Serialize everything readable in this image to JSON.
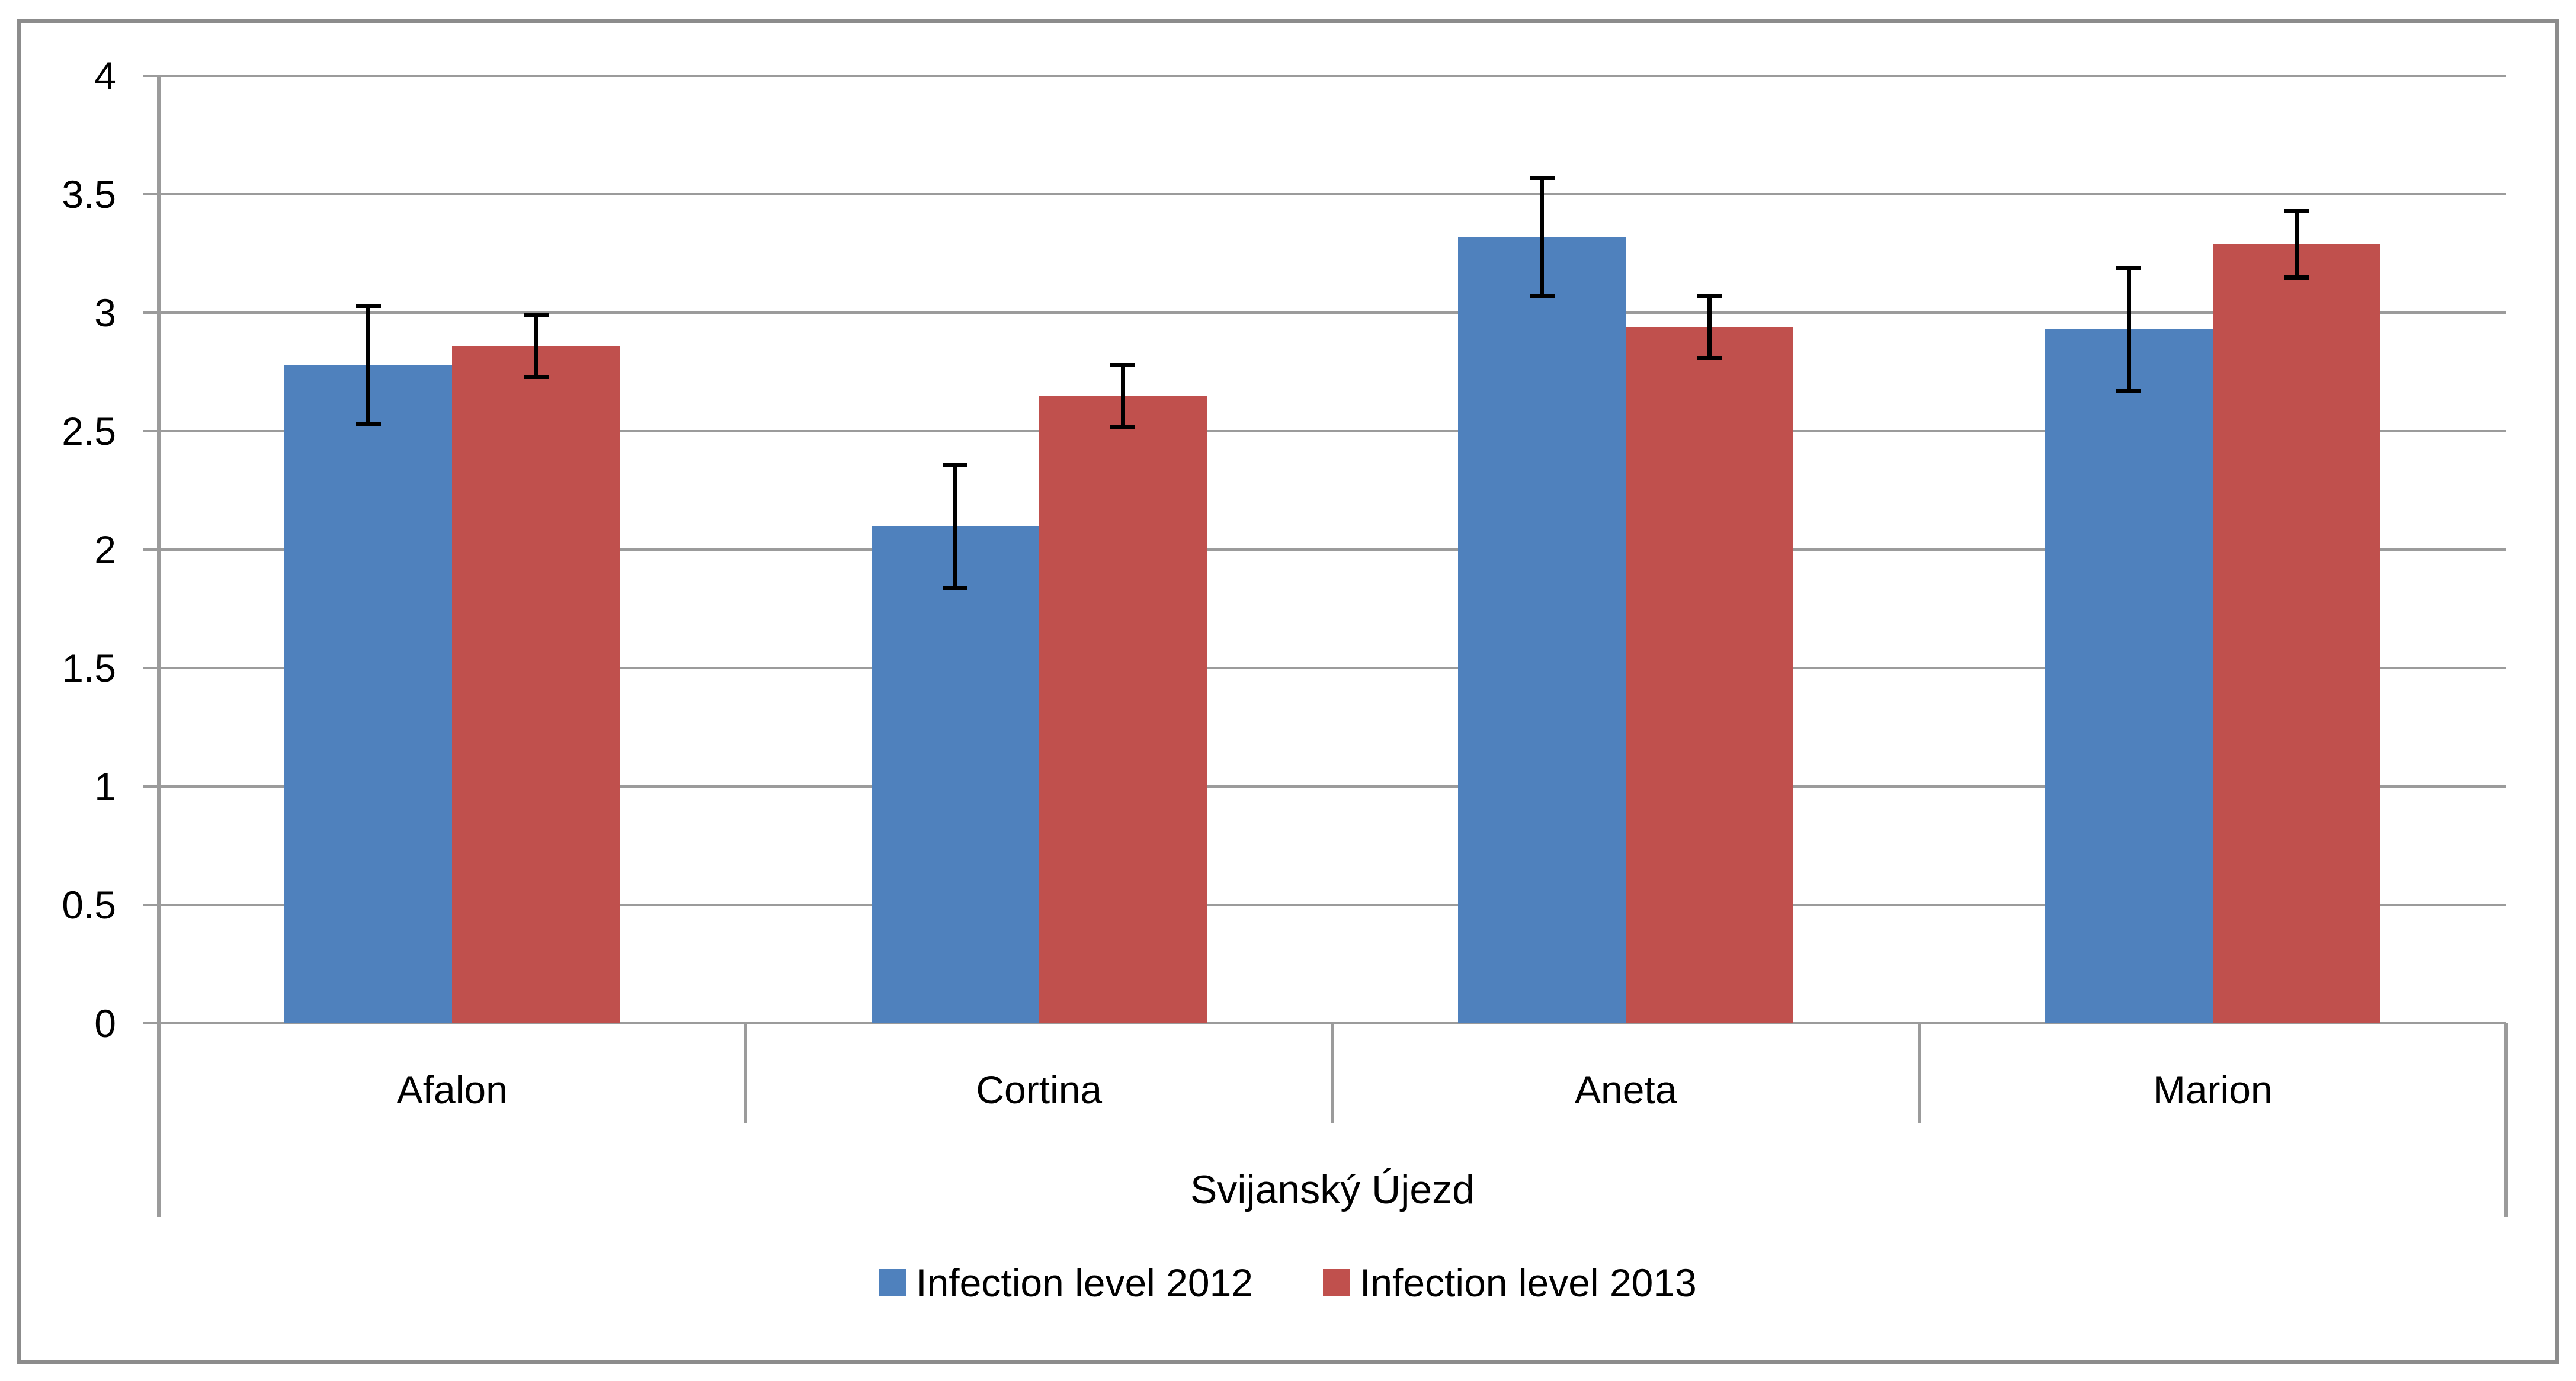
{
  "chart_data": {
    "type": "bar",
    "title": "",
    "xlabel": "Svijanský Újezd",
    "ylabel": "",
    "ylim": [
      0,
      4
    ],
    "ytick_step": 0.5,
    "ytick_labels": [
      "4",
      "3.5",
      "3",
      "2.5",
      "2",
      "1.5",
      "1",
      "0.5",
      "0"
    ],
    "grid": true,
    "legend_position": "bottom",
    "categories": [
      "Afalon",
      "Cortina",
      "Aneta",
      "Marion"
    ],
    "series": [
      {
        "name": "Infection level 2012",
        "color": "#4F81BD",
        "values": [
          2.78,
          2.1,
          3.32,
          2.93
        ],
        "errors": [
          0.25,
          0.26,
          0.25,
          0.26
        ]
      },
      {
        "name": "Infection level 2013",
        "color": "#C0504D",
        "values": [
          2.86,
          2.65,
          2.94,
          3.29
        ],
        "errors": [
          0.13,
          0.13,
          0.13,
          0.14
        ]
      }
    ]
  },
  "colors": {
    "background": "#FFFFFF",
    "border": "#8C8C8C",
    "gridline": "#9B9B9B",
    "axis_line": "#9B9B9B",
    "error_bar": "#000000",
    "text": "#000000"
  }
}
